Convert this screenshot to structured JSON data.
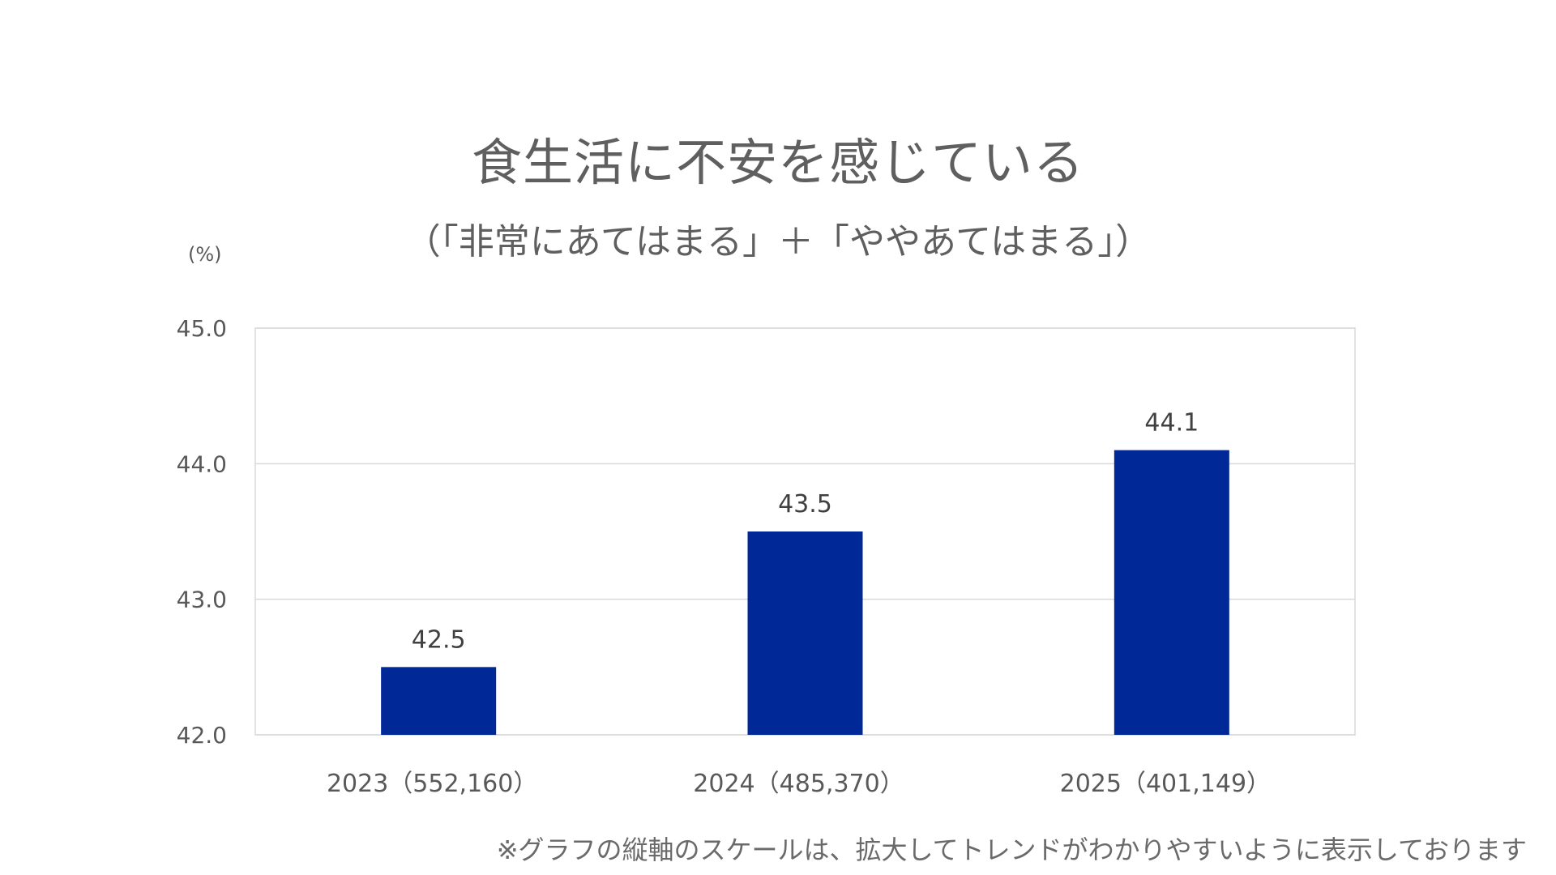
{
  "chart_data": {
    "type": "bar",
    "title": "食生活に不安を感じている",
    "subtitle": "（「非常にあてはまる」＋「ややあてはまる」）",
    "ylabel": "(%)",
    "xlabel": "",
    "categories": [
      "2023（552,160）",
      "2024（485,370）",
      "2025（401,149）"
    ],
    "values": [
      42.5,
      43.5,
      44.1
    ],
    "value_labels": [
      "42.5",
      "43.5",
      "44.1"
    ],
    "ylim": [
      42.0,
      45.0
    ],
    "yticks": [
      42.0,
      43.0,
      44.0,
      45.0
    ],
    "ytick_labels": [
      "42.0",
      "43.0",
      "44.0",
      "45.0"
    ],
    "grid": true,
    "legend": "none",
    "bar_color": "#002896",
    "gridline_color": "#d9d9d9",
    "note": "※グラフの縦軸のスケールは、拡大してトレンドがわかりやすいように表示しております"
  }
}
